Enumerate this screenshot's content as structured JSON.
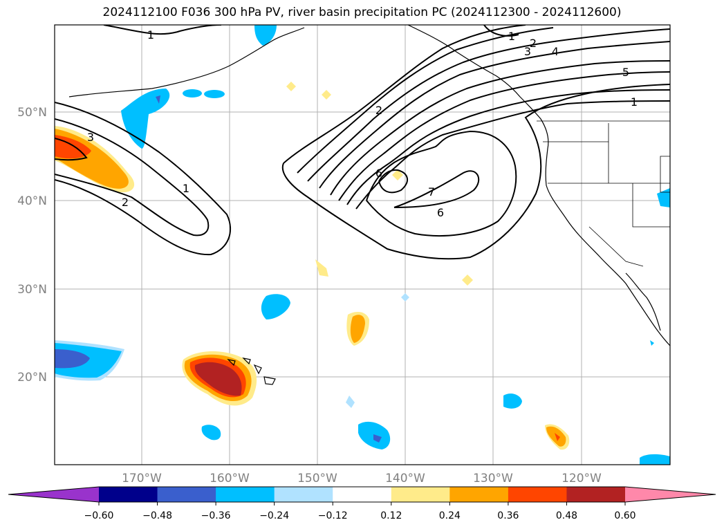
{
  "title": "2024112100 F036 300 hPa PV, river basin precipitation PC (2024112300 - 2024112600)",
  "map": {
    "lat_ticks": [
      "50°N",
      "40°N",
      "30°N",
      "20°N"
    ],
    "lon_ticks": [
      "170°W",
      "160°W",
      "150°W",
      "140°W",
      "130°W",
      "120°W"
    ],
    "grid": true,
    "pv_contour_labels": [
      "1",
      "2",
      "3",
      "4",
      "5",
      "6",
      "7",
      "1",
      "2",
      "3",
      "1",
      "2",
      "6",
      "6"
    ]
  },
  "colorbar": {
    "ticks": [
      "−0.60",
      "−0.48",
      "−0.36",
      "−0.24",
      "−0.12",
      "0.12",
      "0.24",
      "0.36",
      "0.48",
      "0.60"
    ],
    "colors": [
      "#9933cc",
      "#00008b",
      "#3a5fcd",
      "#00bfff",
      "#b0e2ff",
      "#ffffff",
      "#ffeb8a",
      "#ffa500",
      "#ff4500",
      "#b22222",
      "#ff88aa"
    ]
  }
}
